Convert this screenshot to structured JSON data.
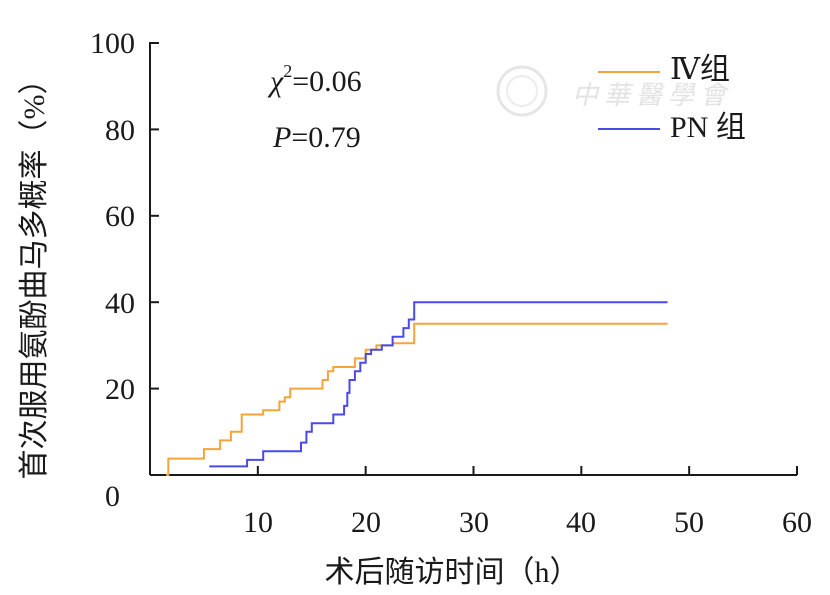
{
  "chart_data": {
    "type": "line",
    "step": true,
    "xlabel": "术后随访时间（h）",
    "ylabel": "首次服用氨酚曲马多概率（%）",
    "xlim": [
      0,
      60
    ],
    "ylim": [
      0,
      100
    ],
    "xticks": [
      0,
      10,
      20,
      30,
      40,
      50,
      60
    ],
    "yticks": [
      0,
      20,
      40,
      60,
      80,
      100
    ],
    "xtick_labels": [
      "10",
      "20",
      "30",
      "40",
      "50",
      "60"
    ],
    "ytick_labels": [
      "0",
      "20",
      "40",
      "60",
      "80",
      "100"
    ],
    "annotations": {
      "chi_symbol": "χ",
      "chi_power": "2",
      "chi_value": "=0.06",
      "p_symbol": "P",
      "p_value": "=0.79"
    },
    "legend_position": "top-right",
    "series": [
      {
        "name": "Ⅳ组",
        "color": "#f5a33a",
        "x": [
          1.5,
          1.7,
          5.0,
          6.5,
          7.5,
          8.5,
          10.5,
          12.0,
          12.5,
          13.0,
          16.0,
          16.5,
          17.0,
          19.0,
          20.0,
          21.0,
          22.5,
          24.5,
          48.0
        ],
        "y": [
          0,
          3.8,
          6.0,
          8.0,
          10.0,
          14.0,
          15.0,
          17.0,
          18.0,
          20.0,
          22.0,
          24.0,
          25.0,
          27.0,
          29.0,
          30.0,
          30.5,
          35.0,
          35.0
        ]
      },
      {
        "name": "PN 组",
        "color": "#4a4ae6",
        "x": [
          5.5,
          9.0,
          10.5,
          14.0,
          14.5,
          15.0,
          17.0,
          18.0,
          18.3,
          18.5,
          19.0,
          19.5,
          20.0,
          20.5,
          21.5,
          22.5,
          23.5,
          24.0,
          24.5,
          48.0
        ],
        "y": [
          2.0,
          3.5,
          5.5,
          7.5,
          10.0,
          12.0,
          14.0,
          16.0,
          19.0,
          22.0,
          24.0,
          26.0,
          28.0,
          29.0,
          30.0,
          32.0,
          34.0,
          36.0,
          40.0,
          40.0
        ]
      }
    ]
  },
  "watermark": {
    "text": "中華醫學會"
  }
}
